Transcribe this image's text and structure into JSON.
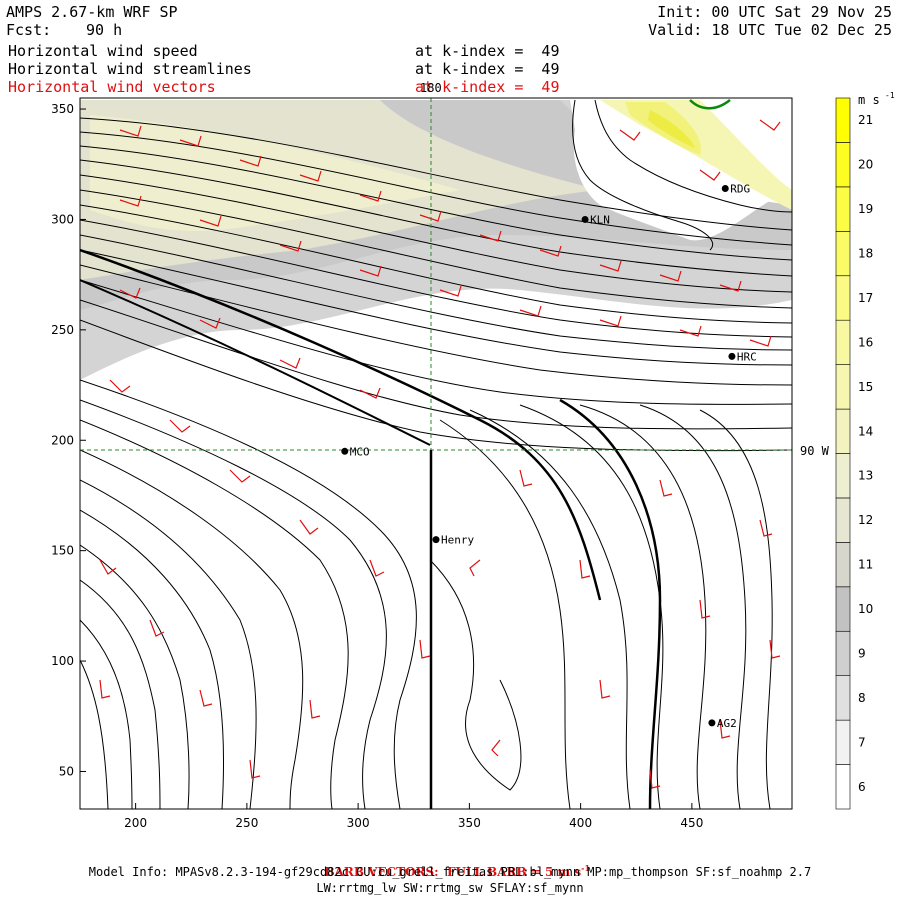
{
  "header": {
    "model": "AMPS 2.67-km WRF SP",
    "fcst_label": "Fcst:",
    "fcst_value": "90 h",
    "init": "Init: 00 UTC Sat 29 Nov 25",
    "valid": "Valid: 18 UTC Tue 02 Dec 25",
    "fields": [
      {
        "name": "Horizontal wind speed",
        "level": "at k-index =  49"
      },
      {
        "name": "Horizontal wind streamlines",
        "level": "at k-index =  49"
      },
      {
        "name": "Horizontal wind vectors",
        "level": "at k-index =  49"
      }
    ]
  },
  "colorbar": {
    "units": "m s",
    "units_exp": "-1",
    "levels": [
      6,
      7,
      8,
      9,
      10,
      11,
      12,
      13,
      14,
      15,
      16,
      17,
      18,
      19,
      20,
      21
    ],
    "colors": [
      "#ffffff",
      "#f2f2f2",
      "#e0e0e0",
      "#cfcfcf",
      "#c2c2c2",
      "#d6d6cc",
      "#e6e6d2",
      "#eeeed0",
      "#f3f3c0",
      "#f6f6b0",
      "#f8f8a0",
      "#fafa85",
      "#fbfb66",
      "#fcfc44",
      "#fdfd22",
      "#ffff00"
    ]
  },
  "annotations": {
    "meridian": "180",
    "parallel": "90 W"
  },
  "stations": [
    {
      "name": "RDG",
      "x": 465,
      "y": 314
    },
    {
      "name": "KLN",
      "x": 402,
      "y": 300
    },
    {
      "name": "HRC",
      "x": 468,
      "y": 238
    },
    {
      "name": "MCO",
      "x": 294,
      "y": 195
    },
    {
      "name": "Henry",
      "x": 335,
      "y": 155
    },
    {
      "name": "AG2",
      "x": 459,
      "y": 72
    }
  ],
  "chart_data": {
    "type": "heatmap",
    "title": "Horizontal wind speed",
    "xlim": [
      175,
      495
    ],
    "ylim": [
      33,
      355
    ],
    "xticks": [
      200,
      250,
      300,
      350,
      400,
      450
    ],
    "yticks": [
      50,
      100,
      150,
      200,
      250,
      300,
      350
    ]
  },
  "footer": {
    "barb_note": "BARB VECTORS:  FULL BARB = 5 m s",
    "barb_exp": "-1",
    "model_info": "Model Info: MPASv8.2.3-194-gf29cd82c CU:cu_grell_freitas PBL:bl_mynn MP:mp_thompson SF:sf_noahmp 2.7",
    "model_info2": "LW:rrtmg_lw SW:rrtmg_sw SFLAY:sf_mynn"
  }
}
